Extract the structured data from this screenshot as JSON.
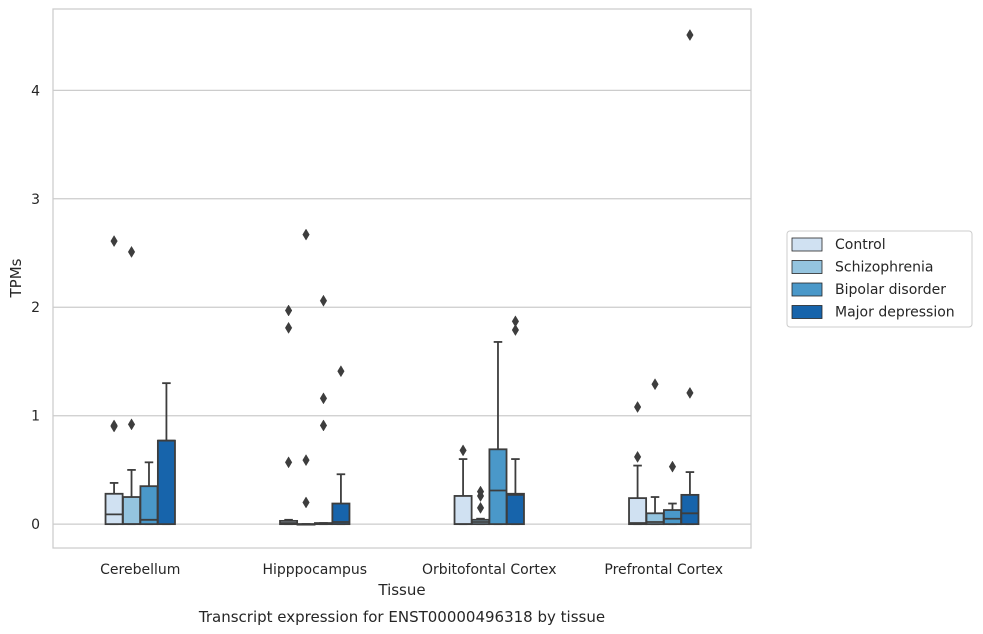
{
  "chart_data": {
    "type": "box",
    "xlabel": "Tissue",
    "ylabel": "TPMs",
    "caption": "Transcript expression for ENST00000496318 by tissue",
    "ylim": [
      -0.22,
      4.75
    ],
    "yticks": [
      0,
      1,
      2,
      3,
      4
    ],
    "grid": "horizontal",
    "legend_position": "right",
    "categories": [
      "Cerebellum",
      "Hipppocampus",
      "Orbitofontal Cortex",
      "Prefrontal Cortex"
    ],
    "series": [
      {
        "name": "Control",
        "color": "#d0e1f2",
        "boxes": [
          {
            "whisker_low": 0,
            "q1": 0,
            "median": 0.09,
            "q3": 0.28,
            "whisker_high": 0.38,
            "outliers": [
              0.9,
              0.91,
              2.61
            ]
          },
          {
            "whisker_low": 0,
            "q1": 0,
            "median": 0.01,
            "q3": 0.03,
            "whisker_high": 0.04,
            "outliers": [
              0.57,
              1.81,
              1.97
            ]
          },
          {
            "whisker_low": 0,
            "q1": 0,
            "median": 0,
            "q3": 0.26,
            "whisker_high": 0.6,
            "outliers": [
              0.68
            ]
          },
          {
            "whisker_low": 0,
            "q1": 0,
            "median": 0.01,
            "q3": 0.24,
            "whisker_high": 0.54,
            "outliers": [
              0.62,
              1.08
            ]
          }
        ]
      },
      {
        "name": "Schizophrenia",
        "color": "#94c4df",
        "boxes": [
          {
            "whisker_low": 0,
            "q1": 0,
            "median": 0,
            "q3": 0.25,
            "whisker_high": 0.5,
            "outliers": [
              0.92,
              2.51
            ]
          },
          {
            "whisker_low": 0,
            "q1": 0,
            "median": 0,
            "q3": 0,
            "whisker_high": 0,
            "outliers": [
              0.2,
              0.59,
              2.67
            ]
          },
          {
            "whisker_low": 0,
            "q1": 0,
            "median": 0.02,
            "q3": 0.04,
            "whisker_high": 0.05,
            "outliers": [
              0.15,
              0.26,
              0.3
            ]
          },
          {
            "whisker_low": 0,
            "q1": 0,
            "median": 0.02,
            "q3": 0.1,
            "whisker_high": 0.25,
            "outliers": [
              1.29
            ]
          }
        ]
      },
      {
        "name": "Bipolar disorder",
        "color": "#4a98c9",
        "boxes": [
          {
            "whisker_low": 0,
            "q1": 0,
            "median": 0.04,
            "q3": 0.35,
            "whisker_high": 0.57,
            "outliers": []
          },
          {
            "whisker_low": 0,
            "q1": 0,
            "median": 0,
            "q3": 0.01,
            "whisker_high": 0.01,
            "outliers": [
              0.91,
              1.16,
              2.06
            ]
          },
          {
            "whisker_low": 0,
            "q1": 0,
            "median": 0.31,
            "q3": 0.69,
            "whisker_high": 1.68,
            "outliers": []
          },
          {
            "whisker_low": 0,
            "q1": 0,
            "median": 0.05,
            "q3": 0.13,
            "whisker_high": 0.19,
            "outliers": [
              0.53
            ]
          }
        ]
      },
      {
        "name": "Major depression",
        "color": "#1764ab",
        "boxes": [
          {
            "whisker_low": 0,
            "q1": 0,
            "median": 0.77,
            "q3": 0.77,
            "whisker_high": 1.3,
            "outliers": []
          },
          {
            "whisker_low": 0,
            "q1": 0,
            "median": 0.02,
            "q3": 0.19,
            "whisker_high": 0.46,
            "outliers": [
              1.41
            ]
          },
          {
            "whisker_low": 0,
            "q1": 0,
            "median": 0.27,
            "q3": 0.28,
            "whisker_high": 0.6,
            "outliers": [
              1.79,
              1.87
            ]
          },
          {
            "whisker_low": 0,
            "q1": 0,
            "median": 0.1,
            "q3": 0.27,
            "whisker_high": 0.48,
            "outliers": [
              1.21,
              4.51
            ]
          }
        ]
      }
    ]
  }
}
